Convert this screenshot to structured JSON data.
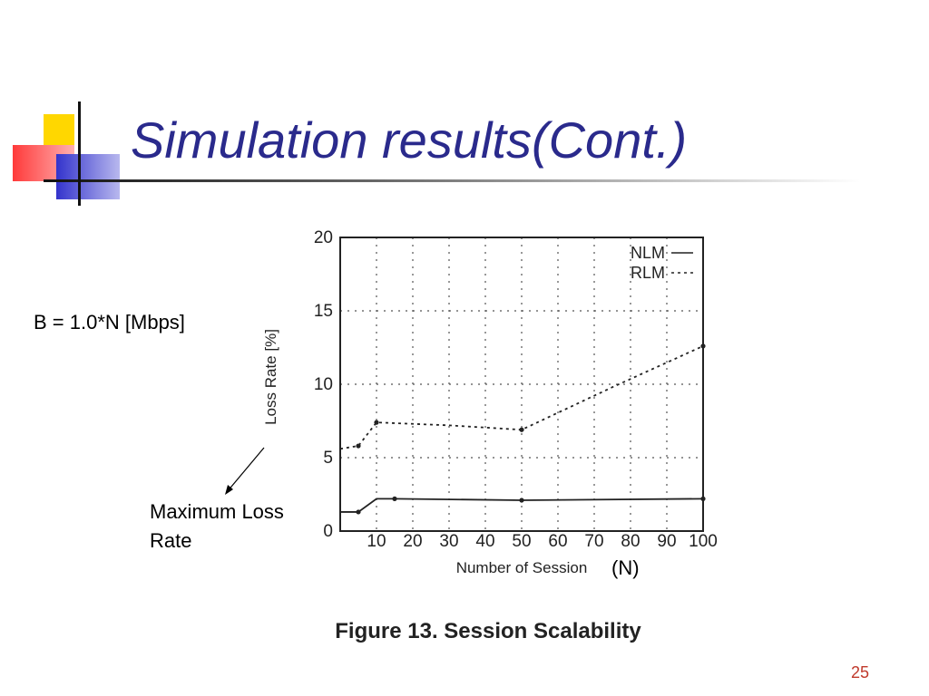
{
  "slide": {
    "title": "Simulation results(Cont.)",
    "bandwidth_note": "B = 1.0*N [Mbps]",
    "annotation": "Maximum Loss Rate",
    "n_label": "(N)",
    "page_number": "25",
    "colors": {
      "title": "#2a2a8c",
      "accent_yellow": "#ffd700",
      "accent_red": "#ff3a3a",
      "accent_blue": "#3333cc",
      "page_number": "#c0392b"
    }
  },
  "chart_data": {
    "type": "line",
    "title": "Figure 13. Session Scalability",
    "xlabel": "Number of Session",
    "ylabel": "Loss Rate [%]",
    "x_ticks": [
      10,
      20,
      30,
      40,
      50,
      60,
      70,
      80,
      90,
      100
    ],
    "y_ticks": [
      0,
      5,
      10,
      15,
      20
    ],
    "xlim": [
      0,
      100
    ],
    "ylim": [
      0,
      20
    ],
    "grid": true,
    "legend_position": "top-right",
    "series": [
      {
        "name": "NLM",
        "style": "solid",
        "x": [
          0,
          5,
          10,
          15,
          50,
          100
        ],
        "y": [
          1.3,
          1.3,
          2.2,
          2.2,
          2.1,
          2.2
        ],
        "marker_x": [
          5,
          15,
          50,
          100
        ]
      },
      {
        "name": "RLM",
        "style": "dotted",
        "x": [
          0,
          5,
          10,
          30,
          50,
          75,
          100
        ],
        "y": [
          5.6,
          5.8,
          7.4,
          7.2,
          6.9,
          9.8,
          12.6
        ],
        "marker_x": [
          5,
          10,
          50,
          100
        ]
      }
    ]
  }
}
